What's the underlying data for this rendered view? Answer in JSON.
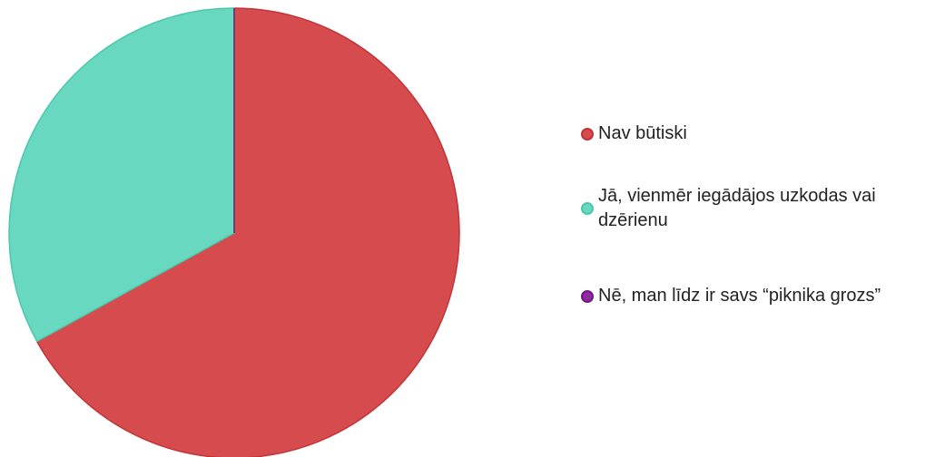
{
  "chart_data": {
    "type": "pie",
    "categories": [
      "Nav būtiski",
      "Jā, vienmēr iegādājos uzkodas vai dzērienu",
      "Nē, man līdz ir savs “piknika grozs”"
    ],
    "values": [
      67,
      33,
      0
    ],
    "colors": [
      "#d64b4d",
      "#68d8c0",
      "#8e2a9e"
    ],
    "border_colors": [
      "#c23438",
      "#4cc7ab",
      "#6e1a7e"
    ],
    "legend": "right"
  }
}
